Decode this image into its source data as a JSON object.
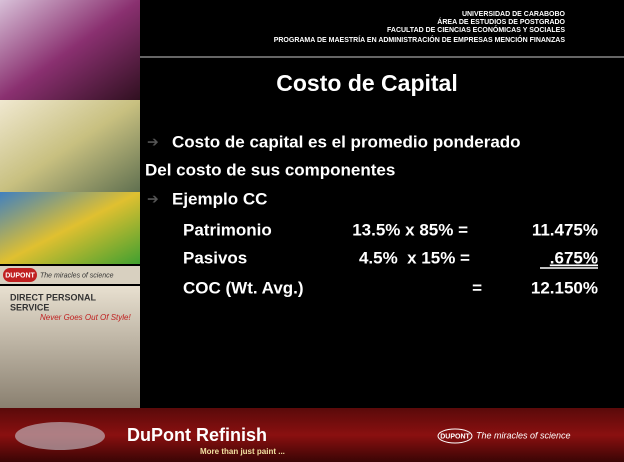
{
  "header": {
    "lines": [
      "UNIVERSIDAD DE CARABOBO",
      "ÁREA DE ESTUDIOS DE POSTGRADO",
      "FACULTAD DE CIENCIAS ECONÓMICAS Y SOCIALES",
      "PROGRAMA DE MAESTRÍA EN ADMINISTRACIÓN DE EMPRESAS MENCIÓN FINANZAS"
    ]
  },
  "title": "Costo de Capital",
  "bullets": [
    "Costo de capital es el promedio ponderado",
    "Del costo de sus componentes",
    "Ejemplo CC"
  ],
  "table": {
    "rows": [
      [
        "Patrimonio",
        "13.5% x 85% =",
        "11.475%"
      ],
      [
        "Pasivos",
        "4.5%  x 15% =",
        ".675%"
      ],
      [
        "COC (Wt. Avg.)",
        "=",
        "12.150%"
      ]
    ]
  },
  "sidebar": {
    "logo": "DUPONT",
    "logo_tagline": "The miracles of science",
    "poster": [
      "DIRECT PERSONAL",
      "SERVICE",
      "Never Goes Out Of Style!"
    ]
  },
  "footer": {
    "brand": "DuPont Refinish",
    "slogan": "More than just paint ...",
    "logo": "DUPONT",
    "tagline": "The miracles of science"
  }
}
